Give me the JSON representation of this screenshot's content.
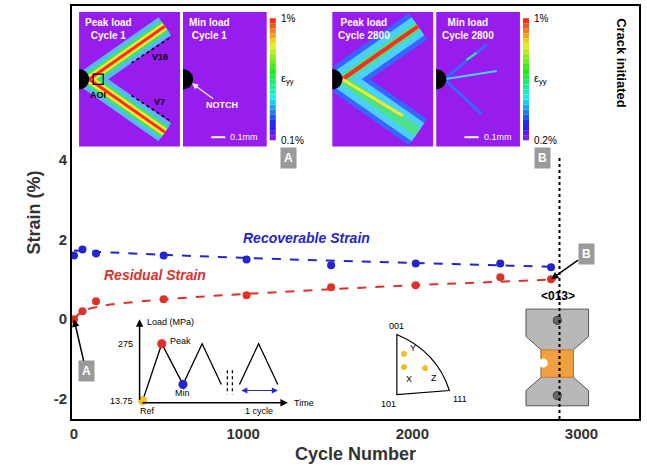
{
  "chart_data": {
    "type": "scatter",
    "x_label": "Cycle Number",
    "y_label": "Strain (%)",
    "xlim": [
      -12,
      3340
    ],
    "xticks": [
      0,
      1000,
      2000,
      3000
    ],
    "ylim": [
      -2.5,
      7.85
    ],
    "yticks": [
      -2,
      0,
      2,
      4
    ],
    "grid": false,
    "x": [
      0,
      50,
      130,
      530,
      1020,
      1520,
      2020,
      2520,
      2820
    ],
    "series": [
      {
        "name": "Recoverable Strain",
        "color": "#2424d0",
        "marker": "circle",
        "values": [
          1.6,
          1.75,
          1.65,
          1.6,
          1.5,
          1.35,
          1.4,
          1.4,
          1.3
        ],
        "fit": {
          "x": [
            0,
            500,
            1000,
            1500,
            2000,
            2500,
            2850
          ],
          "values": [
            1.72,
            1.62,
            1.54,
            1.47,
            1.41,
            1.35,
            1.31
          ],
          "line_style": "dashed"
        }
      },
      {
        "name": "Residual Strain",
        "color": "#e0302a",
        "marker": "circle",
        "values": [
          0,
          0.2,
          0.45,
          0.5,
          0.6,
          0.8,
          0.85,
          1.05,
          1.0
        ],
        "fit": {
          "x": [
            0,
            50,
            150,
            400,
            800,
            1200,
            1600,
            2000,
            2400,
            2850
          ],
          "values": [
            0,
            0.2,
            0.32,
            0.45,
            0.58,
            0.68,
            0.77,
            0.85,
            0.92,
            1.0
          ],
          "line_style": "dashed"
        }
      }
    ],
    "vline": {
      "x": 2870,
      "label": "Crack initiated",
      "line_style": "dotted"
    },
    "annotations": [
      {
        "text": "A",
        "x": 0,
        "y": 0
      },
      {
        "text": "B",
        "x": 2820,
        "y": 1.0
      }
    ],
    "strain_maps": [
      {
        "panel": "A",
        "left_title": [
          "Peak load",
          "Cycle 1"
        ],
        "right_title": [
          "Min load",
          "Cycle 1"
        ],
        "colorbar": {
          "range": [
            0.1,
            1
          ],
          "ticks": [
            {
              "value": 0.1,
              "label": "0.1%"
            },
            {
              "value": 1,
              "label": "1%"
            }
          ],
          "symbol": "ε",
          "subscript": "yy"
        },
        "labels": {
          "aoi": "AOI",
          "v16": "V16",
          "v7": "V7",
          "notch": "NOTCH"
        },
        "scale_bar": "0.1mm"
      },
      {
        "panel": "B",
        "left_title": [
          "Peak load",
          "Cycle 2800"
        ],
        "right_title": [
          "Min load",
          "Cycle 2800"
        ],
        "colorbar": {
          "range": [
            0.2,
            1
          ],
          "ticks": [
            {
              "value": 0.2,
              "label": "0.2%"
            },
            {
              "value": 1,
              "label": "1%"
            }
          ],
          "symbol": "ε",
          "subscript": "yy"
        },
        "scale_bar": "0.1mm"
      }
    ],
    "load_schematic": {
      "y_label": "Load (MPa)",
      "x_label": "Time",
      "peak": {
        "value": 275,
        "label": "Peak"
      },
      "ref": {
        "value": 13.75,
        "label": "Ref"
      },
      "min_label": "Min",
      "period_label": "1 cycle"
    },
    "stereo_triangle": {
      "corners": [
        "001",
        "101",
        "111"
      ],
      "points": [
        "Y",
        "X",
        "Z"
      ]
    },
    "specimen_label": "<013>"
  }
}
